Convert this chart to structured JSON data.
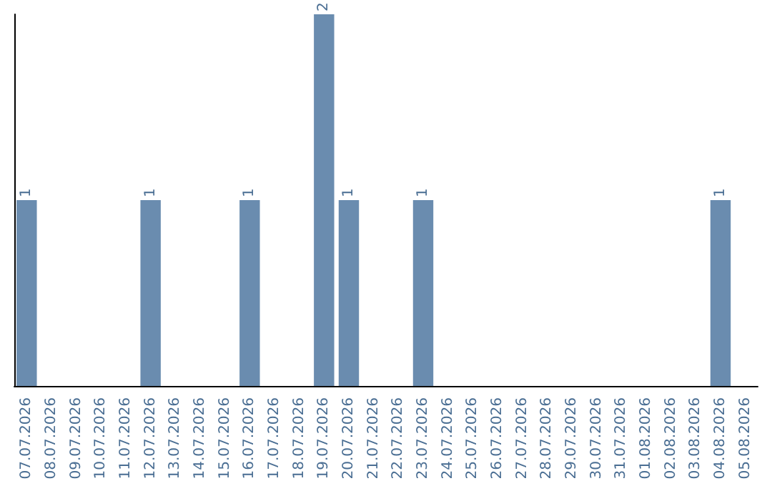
{
  "chart_data": {
    "type": "bar",
    "categories": [
      "07.07.2026",
      "08.07.2026",
      "09.07.2026",
      "10.07.2026",
      "11.07.2026",
      "12.07.2026",
      "13.07.2026",
      "14.07.2026",
      "15.07.2026",
      "16.07.2026",
      "17.07.2026",
      "18.07.2026",
      "19.07.2026",
      "20.07.2026",
      "21.07.2026",
      "22.07.2026",
      "23.07.2026",
      "24.07.2026",
      "25.07.2026",
      "26.07.2026",
      "27.07.2026",
      "28.07.2026",
      "29.07.2026",
      "30.07.2026",
      "31.07.2026",
      "01.08.2026",
      "02.08.2026",
      "03.08.2026",
      "04.08.2026",
      "05.08.2026"
    ],
    "values": [
      1,
      0,
      0,
      0,
      0,
      1,
      0,
      0,
      0,
      1,
      0,
      0,
      2,
      1,
      0,
      0,
      1,
      0,
      0,
      0,
      0,
      0,
      0,
      0,
      0,
      0,
      0,
      0,
      1,
      0
    ],
    "value_labels": [
      "1",
      null,
      null,
      null,
      null,
      "1",
      null,
      null,
      null,
      "1",
      null,
      null,
      "2",
      "1",
      null,
      null,
      "1",
      null,
      null,
      null,
      null,
      null,
      null,
      null,
      null,
      null,
      null,
      null,
      "1",
      null
    ],
    "color": "#6a8caf",
    "grid": false
  }
}
